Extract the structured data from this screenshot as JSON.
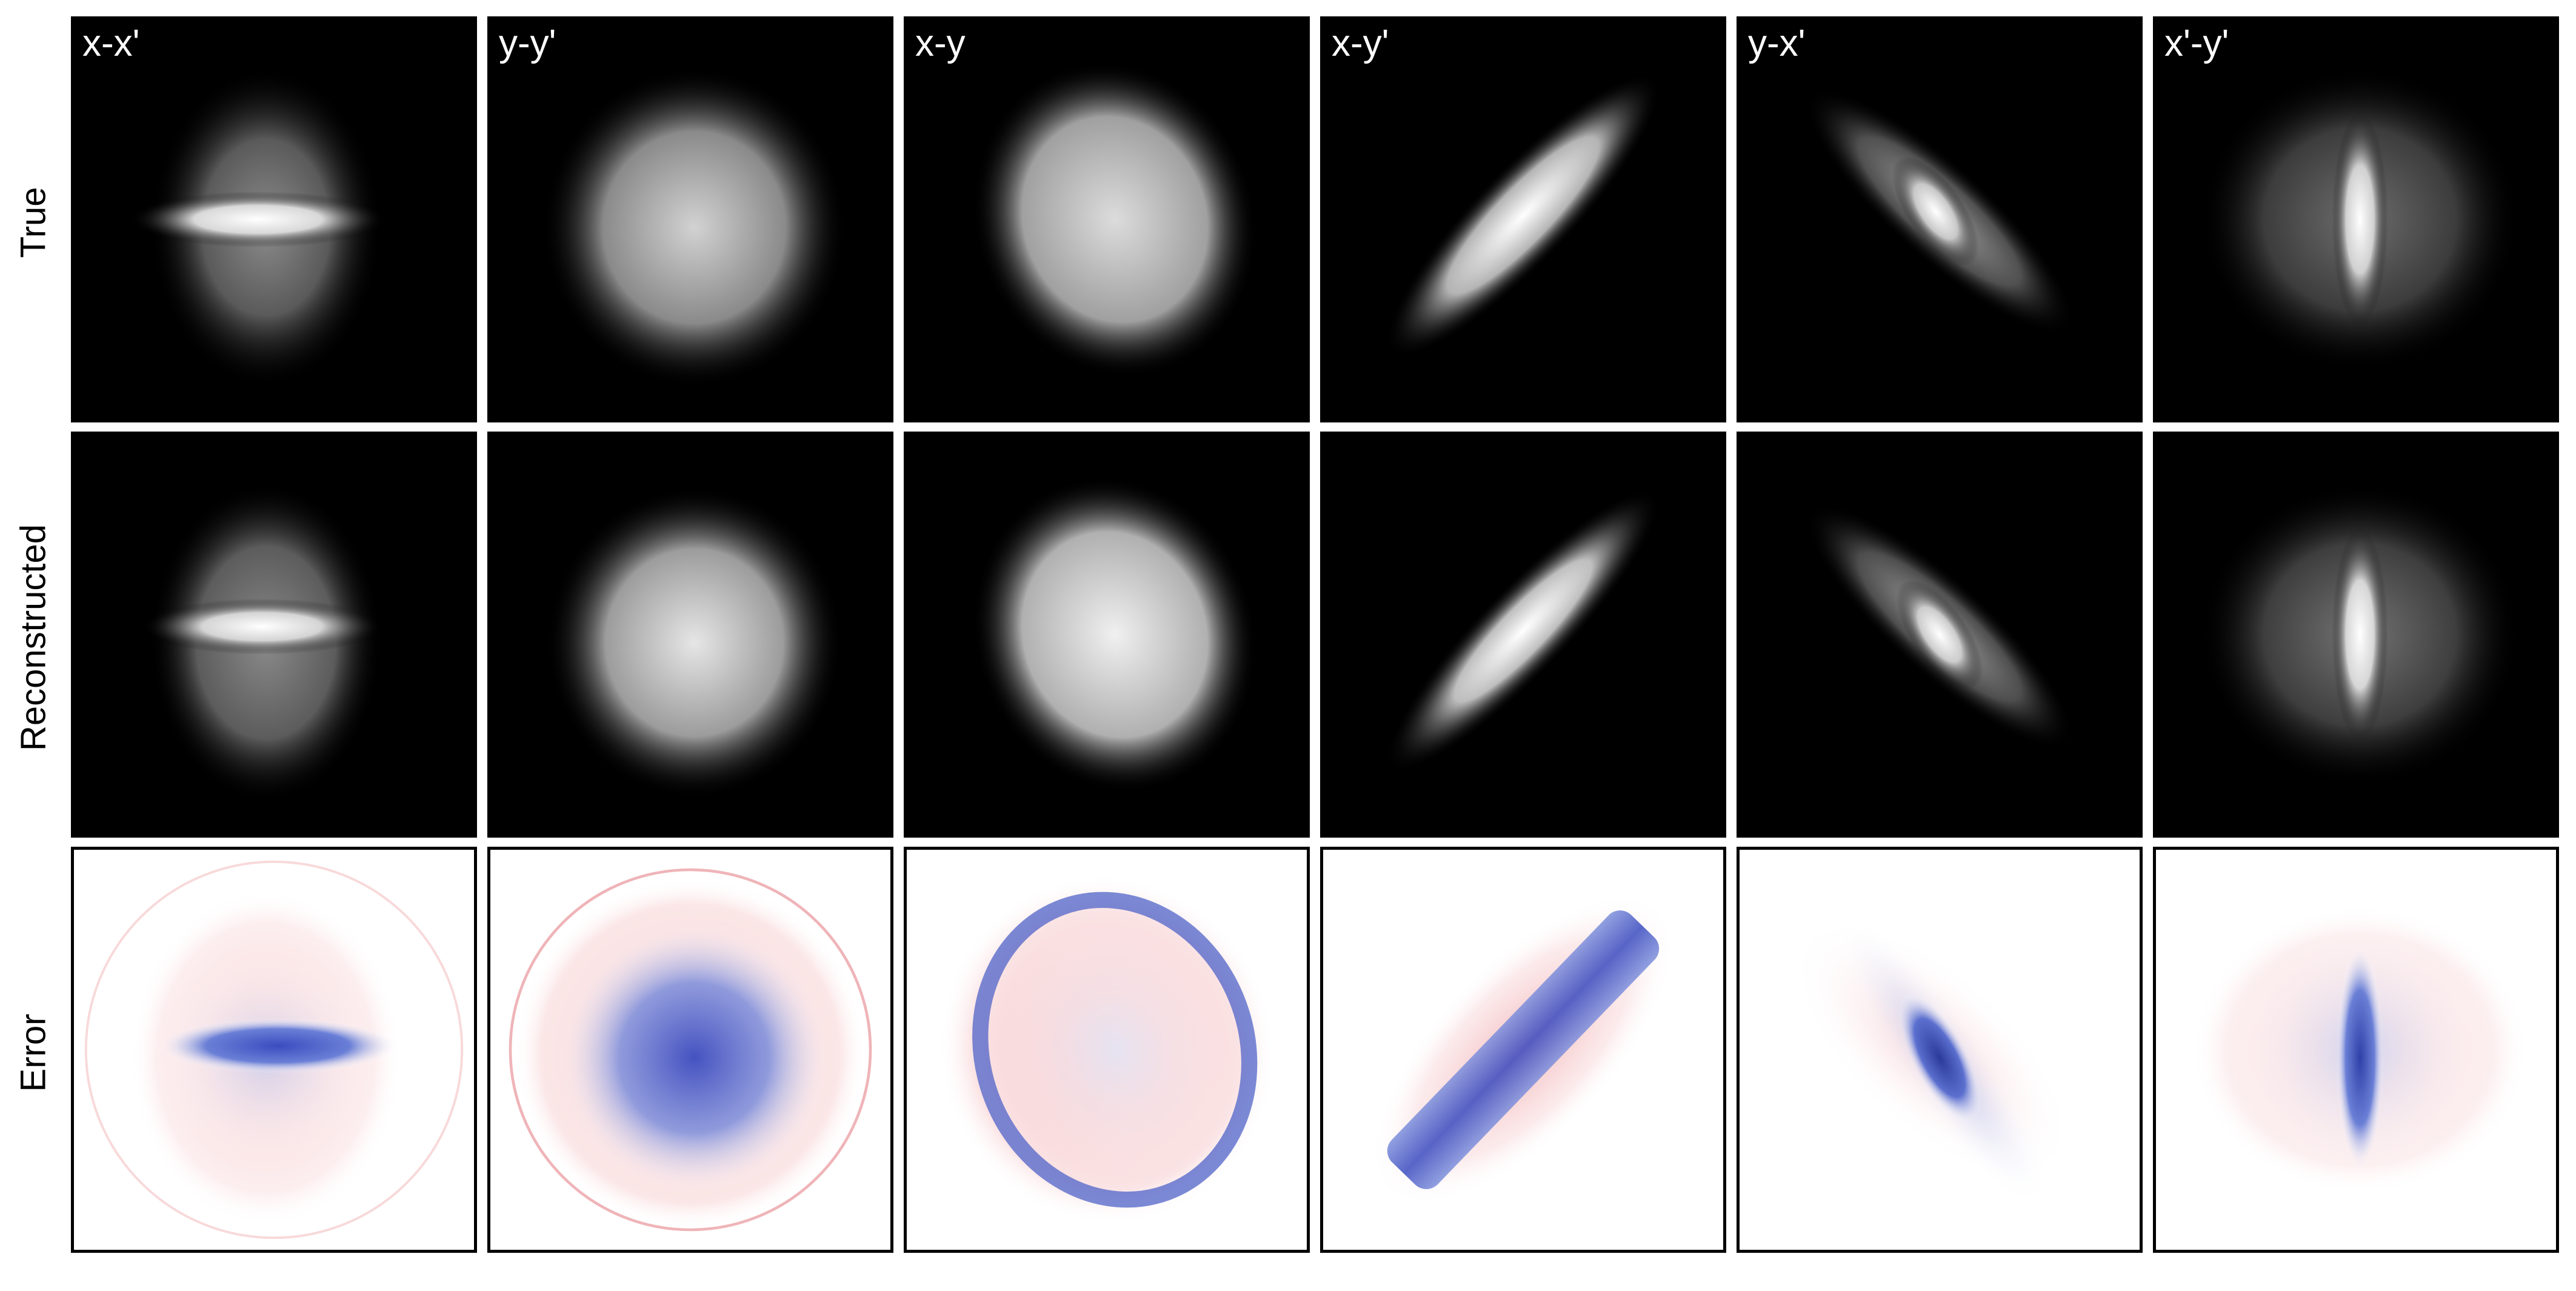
{
  "figure": {
    "column_titles": [
      "x-x'",
      "y-y'",
      "x-y",
      "x-y'",
      "y-x'",
      "x'-y'"
    ],
    "row_labels": [
      "True",
      "Reconstructed",
      "Error"
    ]
  },
  "colors": {
    "density_background": "#000000",
    "density_foreground": "#ffffff",
    "error_positive": "#b8384a",
    "error_negative": "#3b4cc0",
    "error_zero": "#ffffff",
    "frame": "#000000"
  },
  "colormaps": {
    "density": "greyscale (black to white)",
    "error": "diverging (blue - white - red)"
  }
}
